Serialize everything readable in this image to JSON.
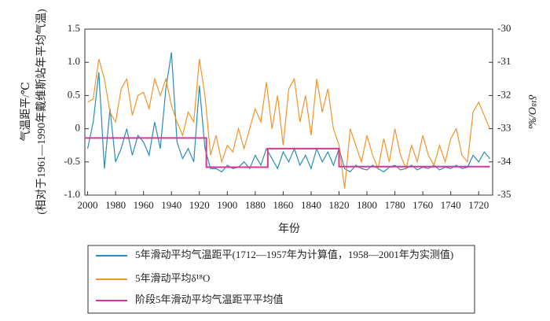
{
  "chart_data": {
    "type": "line",
    "xlabel": "年份",
    "ylabel": [
      "气温距平/℃",
      "(相对于1961—1990年戴维斯站年平均气温)"
    ],
    "y2label": "δ¹⁸O/‰",
    "xlim": [
      2002,
      1710
    ],
    "xticks": [
      2000,
      1980,
      1960,
      1940,
      1920,
      1900,
      1880,
      1860,
      1840,
      1820,
      1800,
      1780,
      1760,
      1740,
      1720
    ],
    "ylim": [
      -1,
      1.5
    ],
    "yticks": [
      {
        "value": -1,
        "label": "-1.0"
      },
      -0.5,
      0,
      0.5,
      {
        "value": 1,
        "label": "1.0"
      },
      1.5
    ],
    "y2lim": [
      -35,
      -30
    ],
    "y2ticks": [
      -35,
      -34,
      -33,
      -32,
      -31,
      -30
    ],
    "series": [
      {
        "name": "5年滑动平均气温距平(1712—1957年为计算值，1958—2001年为实测值)",
        "color": "#2b8db3",
        "x": [
          2000,
          1996,
          1992,
          1988,
          1984,
          1980,
          1976,
          1972,
          1968,
          1964,
          1960,
          1956,
          1952,
          1948,
          1944,
          1940,
          1936,
          1932,
          1928,
          1924,
          1920,
          1916,
          1912,
          1908,
          1904,
          1900,
          1896,
          1892,
          1888,
          1884,
          1880,
          1876,
          1872,
          1868,
          1864,
          1860,
          1856,
          1852,
          1848,
          1844,
          1840,
          1836,
          1832,
          1828,
          1824,
          1820,
          1816,
          1812,
          1808,
          1804,
          1800,
          1796,
          1792,
          1788,
          1784,
          1780,
          1776,
          1772,
          1768,
          1764,
          1760,
          1756,
          1752,
          1748,
          1744,
          1740,
          1736,
          1732,
          1728,
          1724,
          1720,
          1716,
          1712
        ],
        "values": [
          -0.3,
          0.1,
          0.85,
          -0.6,
          0.3,
          -0.5,
          -0.3,
          0.0,
          -0.4,
          -0.1,
          -0.2,
          -0.4,
          0.1,
          -0.3,
          0.6,
          1.15,
          -0.2,
          -0.45,
          -0.3,
          -0.5,
          0.65,
          -0.3,
          -0.6,
          -0.6,
          -0.65,
          -0.55,
          -0.6,
          -0.58,
          -0.5,
          -0.6,
          -0.4,
          -0.55,
          -0.3,
          -0.45,
          -0.6,
          -0.35,
          -0.5,
          -0.3,
          -0.55,
          -0.4,
          -0.6,
          -0.3,
          -0.5,
          -0.35,
          -0.55,
          -0.3,
          -0.6,
          -0.65,
          -0.55,
          -0.6,
          -0.62,
          -0.55,
          -0.6,
          -0.65,
          -0.58,
          -0.55,
          -0.62,
          -0.6,
          -0.55,
          -0.62,
          -0.58,
          -0.6,
          -0.55,
          -0.62,
          -0.58,
          -0.6,
          -0.55,
          -0.6,
          -0.58,
          -0.4,
          -0.5,
          -0.35,
          -0.45
        ]
      },
      {
        "name": "5年滑动平均δ¹⁸O",
        "color": "#f0952b",
        "axis": "y2",
        "x": [
          2000,
          1996,
          1992,
          1988,
          1984,
          1980,
          1976,
          1972,
          1968,
          1964,
          1960,
          1956,
          1952,
          1948,
          1944,
          1940,
          1936,
          1932,
          1928,
          1924,
          1920,
          1916,
          1912,
          1908,
          1904,
          1900,
          1896,
          1892,
          1888,
          1884,
          1880,
          1876,
          1872,
          1868,
          1864,
          1860,
          1856,
          1852,
          1848,
          1844,
          1840,
          1836,
          1832,
          1828,
          1824,
          1820,
          1816,
          1812,
          1808,
          1804,
          1800,
          1796,
          1792,
          1788,
          1784,
          1780,
          1776,
          1772,
          1768,
          1764,
          1760,
          1756,
          1752,
          1748,
          1744,
          1740,
          1736,
          1732,
          1728,
          1724,
          1720,
          1716,
          1712
        ],
        "values": [
          -32.2,
          -32.1,
          -30.9,
          -31.5,
          -32.5,
          -32.8,
          -31.8,
          -31.5,
          -32.6,
          -32.0,
          -31.9,
          -32.4,
          -31.5,
          -32.0,
          -31.5,
          -32.3,
          -32.8,
          -33.2,
          -32.5,
          -32.8,
          -30.9,
          -32.0,
          -33.8,
          -33.2,
          -34.0,
          -33.5,
          -33.7,
          -33.0,
          -33.6,
          -33.0,
          -32.4,
          -32.8,
          -31.6,
          -33.0,
          -32.0,
          -33.5,
          -31.8,
          -31.5,
          -32.8,
          -32.0,
          -33.2,
          -31.5,
          -32.5,
          -31.8,
          -33.0,
          -33.5,
          -34.8,
          -33.0,
          -33.5,
          -34.0,
          -33.2,
          -33.8,
          -34.2,
          -33.3,
          -34.0,
          -33.0,
          -33.8,
          -34.2,
          -33.5,
          -34.0,
          -33.2,
          -33.8,
          -34.1,
          -33.5,
          -34.0,
          -33.3,
          -33.0,
          -33.8,
          -34.0,
          -32.5,
          -32.2,
          -32.6,
          -33.0
        ]
      },
      {
        "name": "阶段5年滑动平均气温距平平均值",
        "color": "#d7379a",
        "x": [
          2002,
          1915,
          1915,
          1871,
          1871,
          1820,
          1820,
          1712
        ],
        "values": [
          -0.14,
          -0.14,
          -0.58,
          -0.58,
          -0.3,
          -0.3,
          -0.57,
          -0.57
        ]
      }
    ]
  }
}
